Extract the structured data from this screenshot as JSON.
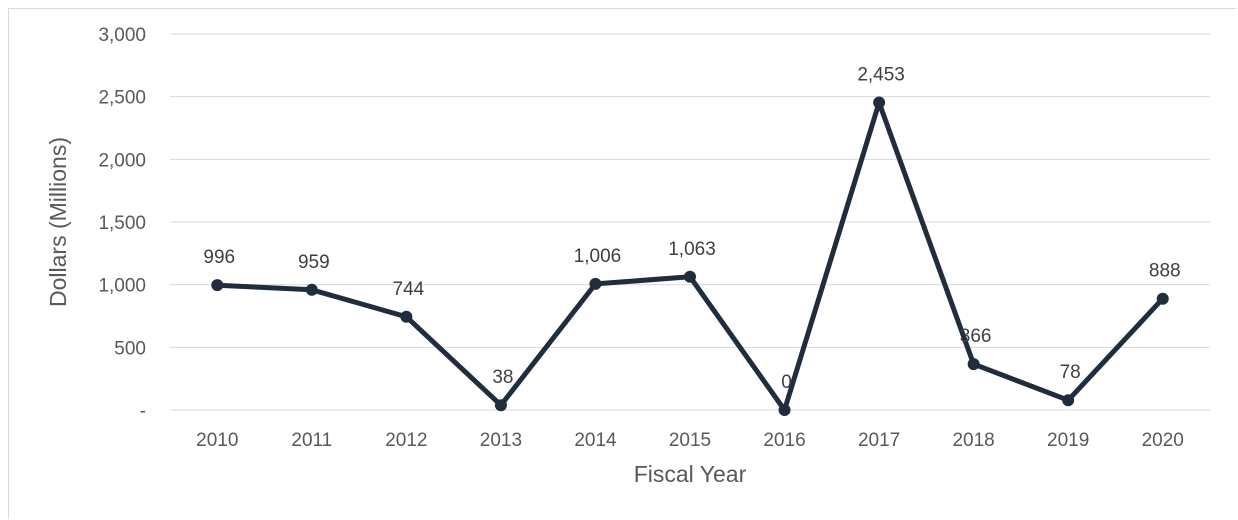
{
  "chart_data": {
    "type": "line",
    "title": "",
    "xlabel": "Fiscal Year",
    "ylabel": "Dollars (Millions)",
    "categories": [
      "2010",
      "2011",
      "2012",
      "2013",
      "2014",
      "2015",
      "2016",
      "2017",
      "2018",
      "2019",
      "2020"
    ],
    "series": [
      {
        "values": [
          996,
          959,
          744,
          38,
          1006,
          1063,
          0,
          2453,
          366,
          78,
          888
        ],
        "data_labels": [
          "996",
          "959",
          "744",
          "38",
          "1,006",
          "1,063",
          "0",
          "2,453",
          "366",
          "78",
          "888"
        ],
        "color": "#1f2d3d"
      }
    ],
    "ylim": [
      0,
      3000
    ],
    "yticks": [
      0,
      500,
      1000,
      1500,
      2000,
      2500,
      3000
    ],
    "ytick_labels": [
      "-",
      "500",
      "1,000",
      "1,500",
      "2,000",
      "2,500",
      "3,000"
    ],
    "grid": true,
    "legend": "none",
    "gridline_color": "#d9d9d9",
    "text_color": "#595959"
  }
}
